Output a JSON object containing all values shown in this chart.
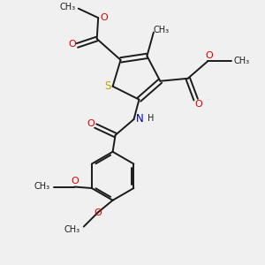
{
  "bg_color": "#f0f0f0",
  "bond_color": "#1a1a1a",
  "s_color": "#b8a000",
  "n_color": "#0000cc",
  "o_color": "#dd0000",
  "lw": 1.4,
  "figsize": [
    3.0,
    3.0
  ],
  "dpi": 100,
  "xlim": [
    0,
    10
  ],
  "ylim": [
    0,
    10
  ]
}
